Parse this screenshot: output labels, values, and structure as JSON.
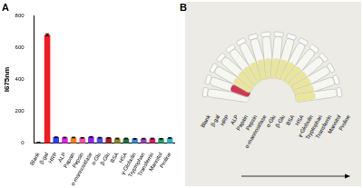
{
  "chart_data": {
    "type": "bar",
    "title": "A",
    "y_label": "I675nm",
    "categories": [
      "Blank",
      "β-gal",
      "HRP",
      "ALP",
      "Papain",
      "Pepsin",
      "α-mannosidase",
      "α-Glu",
      "β-Glu",
      "BSA",
      "HSA",
      "γ-Globulin",
      "Tryptophan",
      "Transferrin",
      "Mannitol",
      "Proline"
    ],
    "values": [
      5,
      680,
      38,
      36,
      36,
      34,
      40,
      35,
      34,
      30,
      30,
      28,
      29,
      30,
      28,
      33
    ],
    "errors": [
      1,
      6,
      2,
      2,
      2,
      2,
      2,
      2,
      2,
      2,
      2,
      2,
      2,
      2,
      2,
      2
    ],
    "colors": [
      "#000000",
      "#ee1c25",
      "#2f3ff0",
      "#e020e0",
      "#f07f1d",
      "#f54fa0",
      "#8a2be2",
      "#4f4fe0",
      "#a0202a",
      "#8c8c20",
      "#207040",
      "#3a8ad8",
      "#9a40c0",
      "#d02060",
      "#20a070",
      "#30b0c0"
    ],
    "ylim": [
      0,
      800
    ],
    "yticks": [
      0,
      200,
      400,
      600,
      800
    ],
    "grid": false
  },
  "photo": {
    "label": "B",
    "tubes": [
      "Blank",
      "β-gal",
      "HRP",
      "ALP",
      "Papain",
      "Pepsin",
      "α-mannosidase",
      "α-Glu",
      "β-Glu",
      "BSA",
      "HSA",
      "γ-Globulin",
      "Tryptophan",
      "Transferrin",
      "Mannitol",
      "Proline"
    ],
    "colors": [
      "#f2f2ee",
      "#c8324a",
      "#e8e49a",
      "#e8e49a",
      "#e8e49a",
      "#e8e49a",
      "#e8e49a",
      "#e8e49a",
      "#e8e49a",
      "#e8e49a",
      "#e8e49a",
      "#e8e49a",
      "#e8e49a",
      "#e8e49a",
      "#e8e49a",
      "#e8e49a"
    ]
  }
}
